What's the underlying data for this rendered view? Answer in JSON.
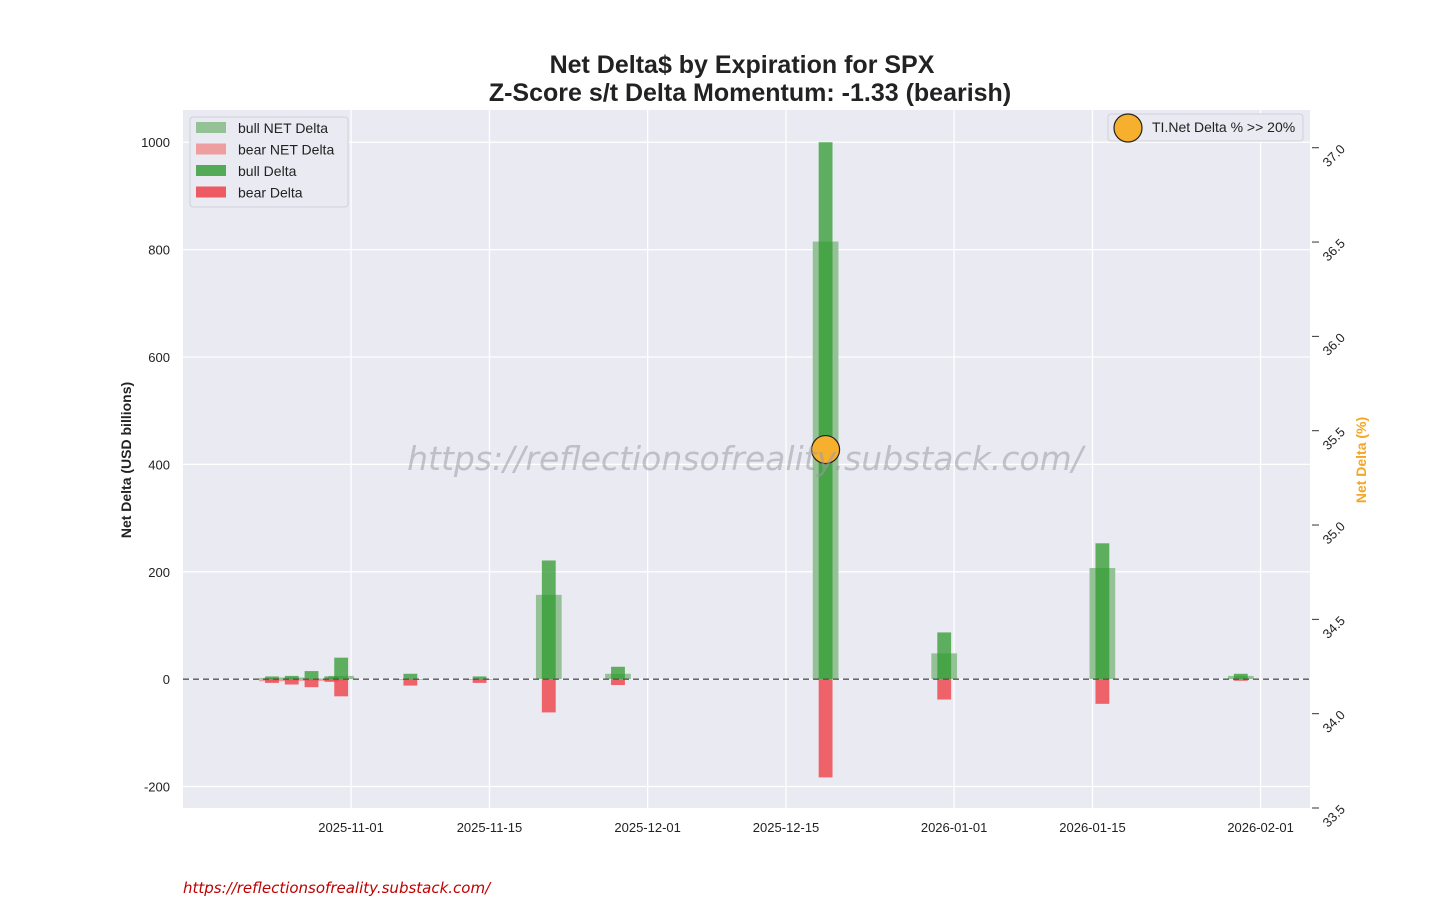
{
  "title_line1": "Net Delta$ by Expiration for SPX",
  "title_line2": "Z-Score s/t Delta Momentum: -1.33 (bearish)",
  "watermark": "https://reflectionsofreality.substack.com/",
  "footer_url": "https://reflectionsofreality.substack.com/",
  "colors": {
    "plot_bg": "#eaeaf2",
    "bull_net": "#8fbf8f",
    "bear_net": "#ef9a9a",
    "bull_delta": "#2e9a2e",
    "bear_delta": "#ee4a52",
    "marker": "#f7b02e",
    "right_axis_label": "#f5a623",
    "zero_line": "#555555"
  },
  "chart_data": {
    "type": "bar",
    "x_axis": {
      "type": "date",
      "ticks": [
        "2025-11-01",
        "2025-11-15",
        "2025-12-01",
        "2025-12-15",
        "2026-01-01",
        "2026-01-15",
        "2026-02-01"
      ],
      "range": [
        "2025-10-15",
        "2026-02-06"
      ]
    },
    "y_axis": {
      "label": "Net Delta (USD billions)",
      "ticks": [
        -200,
        0,
        200,
        400,
        600,
        800,
        1000
      ],
      "range": [
        -240,
        1060
      ]
    },
    "y2_axis": {
      "label": "Net Delta (%)",
      "ticks": [
        "33.5",
        "34.0",
        "34.5",
        "35.0",
        "35.5",
        "36.0",
        "36.5",
        "37.0"
      ],
      "range": [
        33.5,
        37.2
      ]
    },
    "grid": true,
    "zero_line": "dashed",
    "legend": {
      "placement": "top-left",
      "entries": [
        "bull NET Delta",
        "bear NET Delta",
        "bull Delta",
        "bear Delta"
      ]
    },
    "legend2": {
      "placement": "top-right",
      "entries": [
        "TI.Net Delta % >> 20%"
      ]
    },
    "series": [
      {
        "name": "bull NET Delta",
        "points": [
          {
            "x": "2025-10-24",
            "y": 2
          },
          {
            "x": "2025-10-26",
            "y": 3
          },
          {
            "x": "2025-10-28",
            "y": 1
          },
          {
            "x": "2025-10-31",
            "y": 6
          },
          {
            "x": "2025-11-07",
            "y": 0
          },
          {
            "x": "2025-11-14",
            "y": 0
          },
          {
            "x": "2025-11-21",
            "y": 157
          },
          {
            "x": "2025-11-28",
            "y": 10
          },
          {
            "x": "2025-12-19",
            "y": 815
          },
          {
            "x": "2025-12-31",
            "y": 48
          },
          {
            "x": "2026-01-16",
            "y": 207
          },
          {
            "x": "2026-01-30",
            "y": 6
          }
        ]
      },
      {
        "name": "bear NET Delta",
        "points": [
          {
            "x": "2025-10-24",
            "y": -4
          },
          {
            "x": "2025-10-26",
            "y": -3
          },
          {
            "x": "2025-10-28",
            "y": -3
          },
          {
            "x": "2025-10-30",
            "y": -3
          }
        ]
      },
      {
        "name": "bull Delta",
        "points": [
          {
            "x": "2025-10-24",
            "y": 5
          },
          {
            "x": "2025-10-26",
            "y": 6
          },
          {
            "x": "2025-10-28",
            "y": 15
          },
          {
            "x": "2025-10-30",
            "y": 5
          },
          {
            "x": "2025-10-31",
            "y": 40
          },
          {
            "x": "2025-11-07",
            "y": 10
          },
          {
            "x": "2025-11-14",
            "y": 5
          },
          {
            "x": "2025-11-21",
            "y": 221
          },
          {
            "x": "2025-11-28",
            "y": 23
          },
          {
            "x": "2025-12-19",
            "y": 1000
          },
          {
            "x": "2025-12-31",
            "y": 87
          },
          {
            "x": "2026-01-16",
            "y": 253
          },
          {
            "x": "2026-01-30",
            "y": 10
          }
        ]
      },
      {
        "name": "bear Delta",
        "points": [
          {
            "x": "2025-10-24",
            "y": -7
          },
          {
            "x": "2025-10-26",
            "y": -10
          },
          {
            "x": "2025-10-28",
            "y": -15
          },
          {
            "x": "2025-10-30",
            "y": -5
          },
          {
            "x": "2025-10-31",
            "y": -32
          },
          {
            "x": "2025-11-07",
            "y": -12
          },
          {
            "x": "2025-11-14",
            "y": -7
          },
          {
            "x": "2025-11-21",
            "y": -62
          },
          {
            "x": "2025-11-28",
            "y": -11
          },
          {
            "x": "2025-12-19",
            "y": -183
          },
          {
            "x": "2025-12-31",
            "y": -38
          },
          {
            "x": "2026-01-16",
            "y": -46
          },
          {
            "x": "2026-01-30",
            "y": -3
          }
        ]
      },
      {
        "name": "TI.Net Delta % >> 20%",
        "type": "scatter",
        "axis": "y2",
        "points": [
          {
            "x": "2025-12-19",
            "y": 35.4
          }
        ]
      }
    ]
  }
}
